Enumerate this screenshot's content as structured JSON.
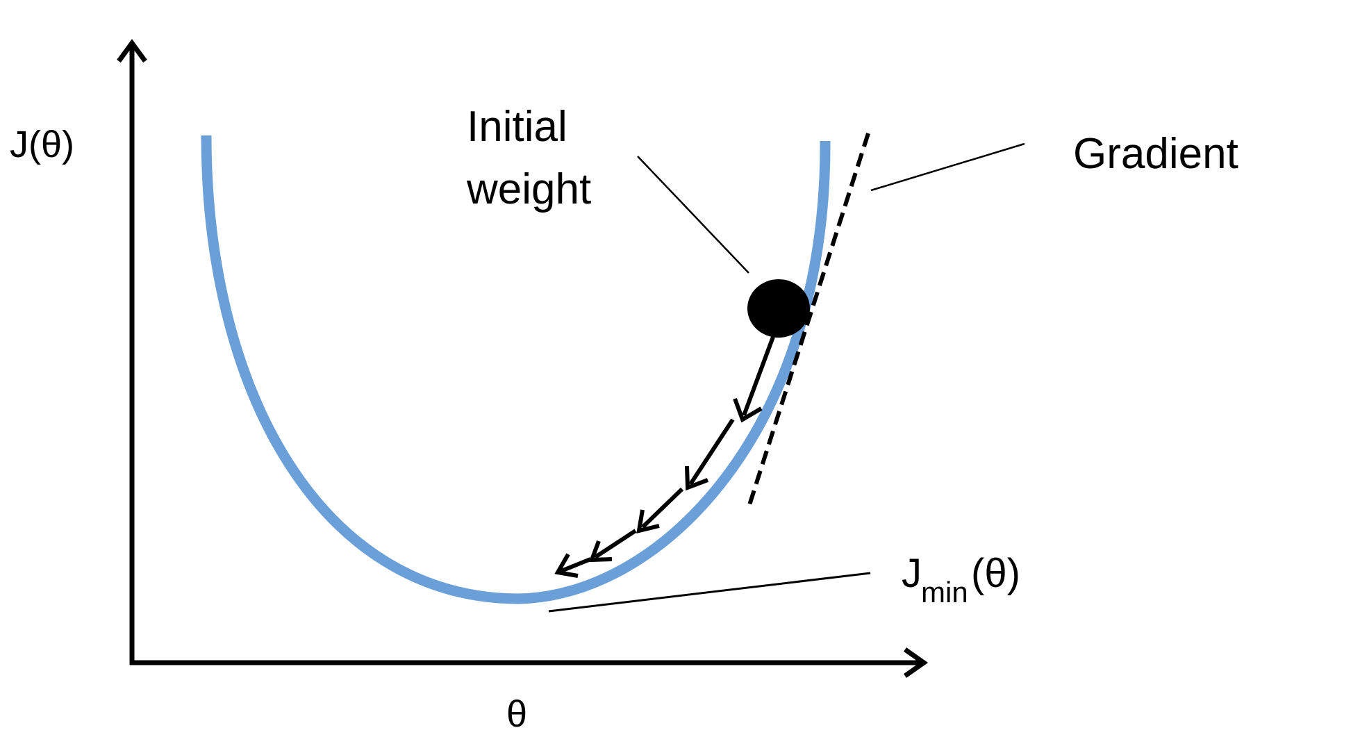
{
  "labels": {
    "y_axis": "J(θ)",
    "x_axis": "θ",
    "initial_weight_line1": "Initial",
    "initial_weight_line2": "weight",
    "gradient": "Gradient",
    "jmin_prefix": "J",
    "jmin_subscript": "min",
    "jmin_suffix": "(θ)"
  },
  "colors": {
    "curve": "#6a9fd8",
    "ink": "#000000",
    "background": "#ffffff"
  }
}
